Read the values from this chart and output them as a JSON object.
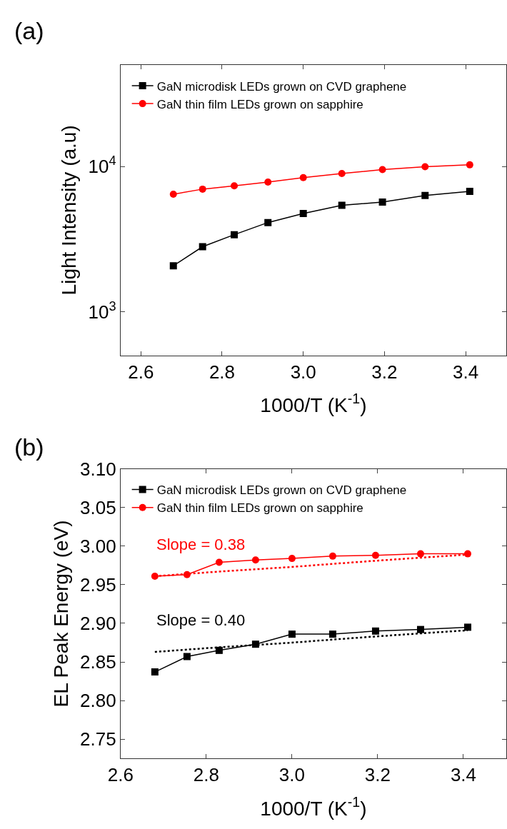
{
  "chart_data": [
    {
      "type": "line",
      "title": "(a)",
      "xlabel": "1000/T (K$^{-1}$)",
      "ylabel": "Light Intensity (a.u)",
      "log": "y",
      "xlim": [
        2.55,
        3.5
      ],
      "xticks": [
        {
          "value": 2.6,
          "label": "2.6"
        },
        {
          "value": 2.8,
          "label": "2.8"
        },
        {
          "value": 3.0,
          "label": "3.0"
        },
        {
          "value": 3.2,
          "label": "3.2"
        },
        {
          "value": 3.4,
          "label": "3.4"
        }
      ],
      "ylim": [
        500,
        50000
      ],
      "yticks": [
        {
          "value": 1000,
          "label": "10$^{3}$"
        },
        {
          "value": 10000,
          "label": "10$^{4}$"
        }
      ],
      "legend": "top left",
      "x": [
        2.68,
        2.752,
        2.83,
        2.913,
        3.0,
        3.095,
        3.195,
        3.3,
        3.41
      ],
      "series": [
        {
          "name": "GaN microdisk LEDs grown on CVD graphene",
          "color": "#000000",
          "marker": "square",
          "values": [
            2070,
            2800,
            3390,
            4110,
            4740,
            5400,
            5680,
            6310,
            6740
          ]
        },
        {
          "name": "GaN thin film LEDs grown on sapphire",
          "color": "#ff0000",
          "marker": "circle",
          "values": [
            6440,
            6980,
            7350,
            7810,
            8380,
            8950,
            9510,
            9950,
            10260
          ]
        }
      ]
    },
    {
      "type": "line",
      "title": "(b)",
      "xlabel": "1000/T (K$^{-1}$)",
      "ylabel": "EL Peak Energy (eV)",
      "xlim": [
        2.6,
        3.5
      ],
      "xticks": [
        {
          "value": 2.6,
          "label": "2.6"
        },
        {
          "value": 2.8,
          "label": "2.8"
        },
        {
          "value": 3.0,
          "label": "3.0"
        },
        {
          "value": 3.2,
          "label": "3.2"
        },
        {
          "value": 3.4,
          "label": "3.4"
        }
      ],
      "ylim": [
        2.725,
        3.1
      ],
      "yticks": [
        {
          "value": 2.75,
          "label": "2.75"
        },
        {
          "value": 2.8,
          "label": "2.80"
        },
        {
          "value": 2.85,
          "label": "2.85"
        },
        {
          "value": 2.9,
          "label": "2.90"
        },
        {
          "value": 2.95,
          "label": "2.95"
        },
        {
          "value": 3.0,
          "label": "3.00"
        },
        {
          "value": 3.05,
          "label": "3.05"
        },
        {
          "value": 3.1,
          "label": "3.10"
        }
      ],
      "legend": "top left",
      "x": [
        2.68,
        2.755,
        2.83,
        2.915,
        3.0,
        3.095,
        3.195,
        3.3,
        3.41
      ],
      "series": [
        {
          "name": "GaN microdisk LEDs grown on CVD graphene",
          "color": "#000000",
          "marker": "square",
          "values": [
            2.837,
            2.857,
            2.865,
            2.873,
            2.886,
            2.886,
            2.89,
            2.892,
            2.895
          ]
        },
        {
          "name": "GaN thin film LEDs grown on sapphire",
          "color": "#ff0000",
          "marker": "circle",
          "values": [
            2.961,
            2.963,
            2.979,
            2.982,
            2.984,
            2.987,
            2.988,
            2.99,
            2.99
          ]
        },
        {
          "color": "#ff0000",
          "marker": "none",
          "line_style": "dotted",
          "values": [
            2.961,
            2.964,
            2.967,
            2.97,
            2.973,
            2.977,
            2.981,
            2.985,
            2.989
          ]
        },
        {
          "color": "#000000",
          "marker": "none",
          "line_style": "dotted",
          "values": [
            2.863,
            2.866,
            2.869,
            2.872,
            2.875,
            2.879,
            2.883,
            2.887,
            2.891
          ]
        }
      ],
      "annotations": [
        "Slope = 0.38",
        "Slope = 0.40"
      ]
    }
  ]
}
